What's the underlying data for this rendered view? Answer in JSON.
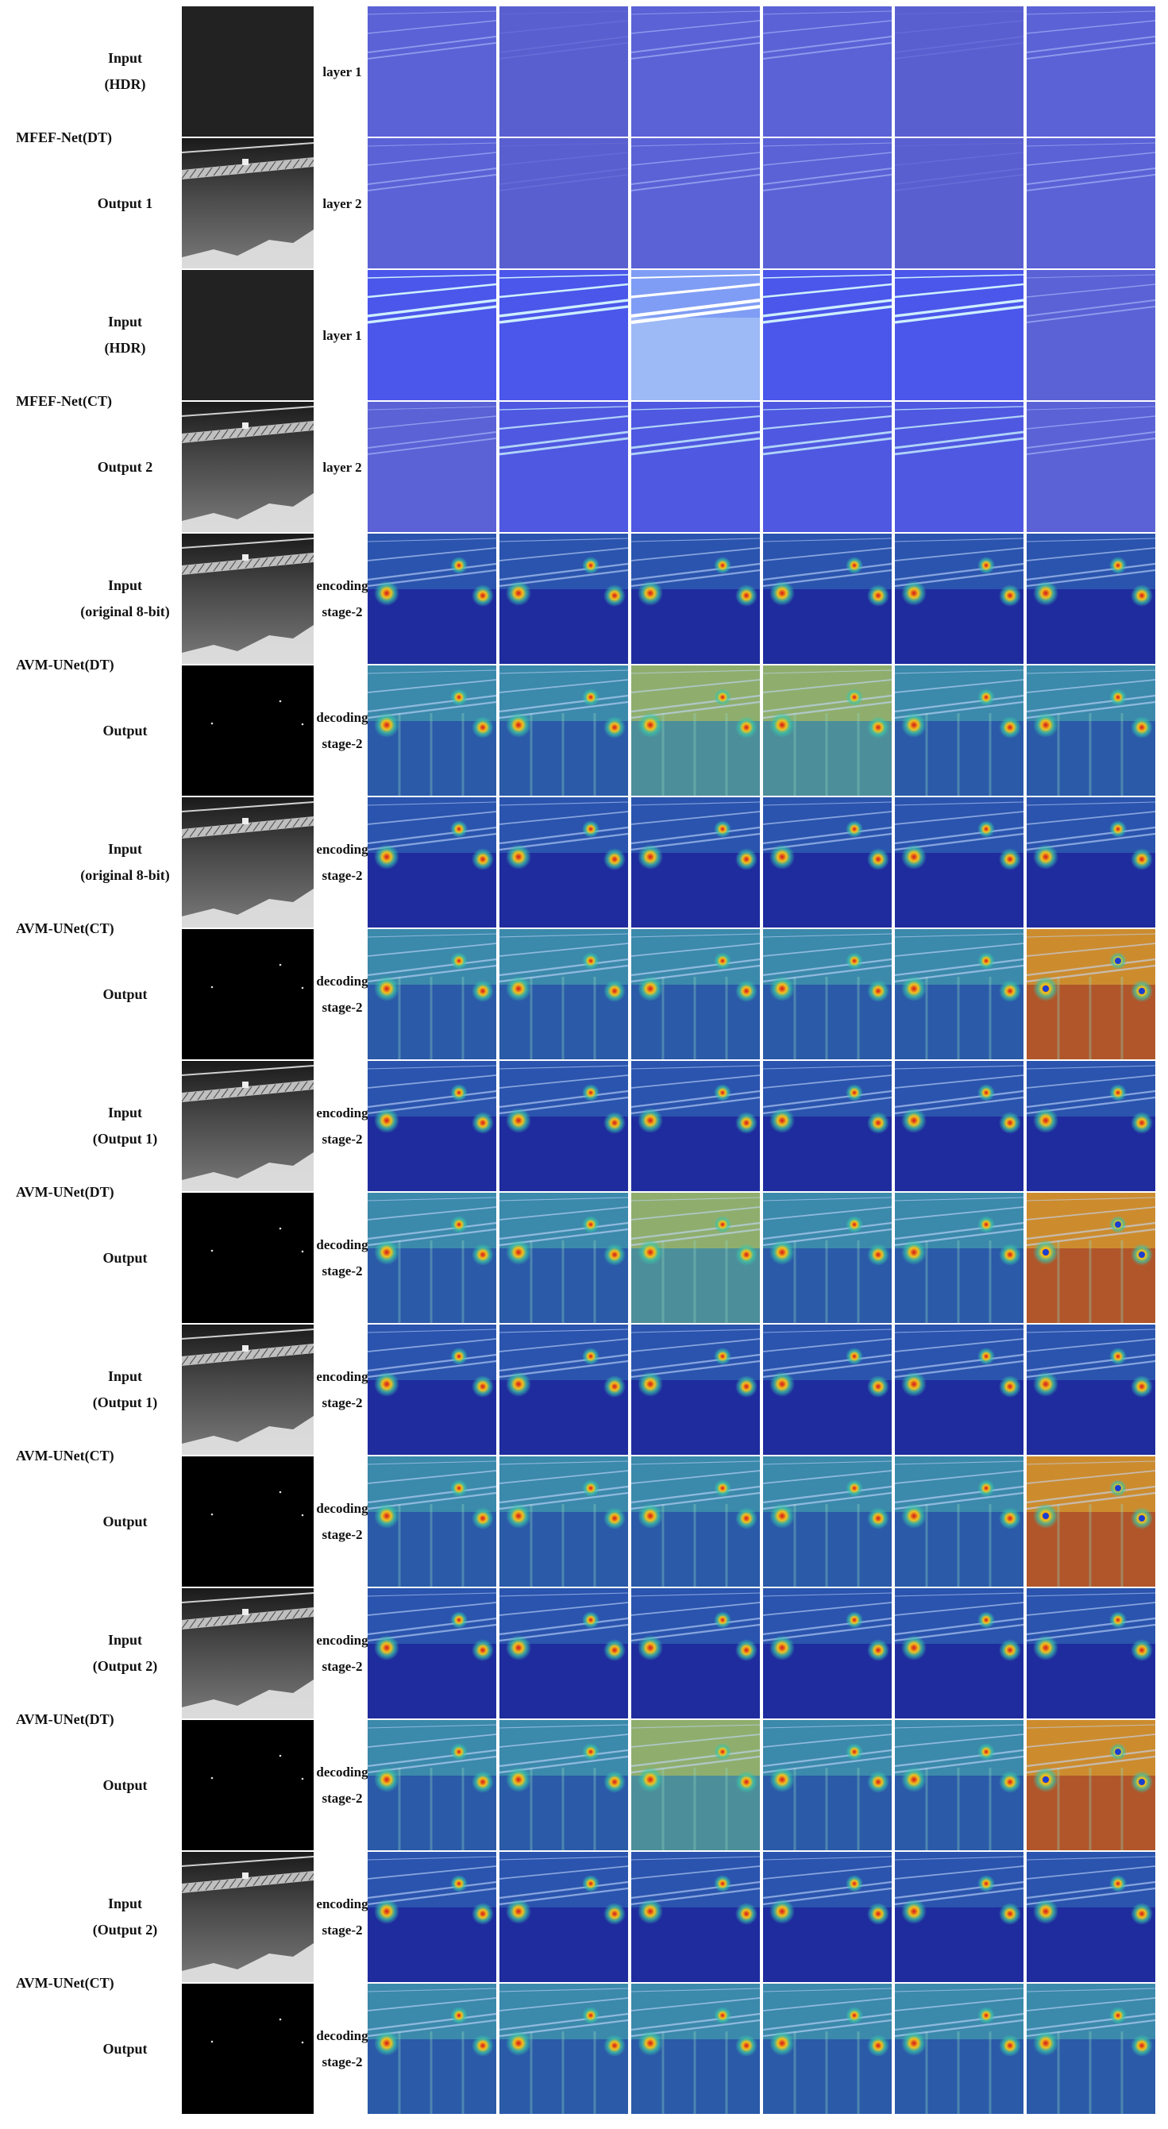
{
  "figure": {
    "groups": [
      {
        "model": "MFEF-Net(DT)",
        "rows": [
          {
            "label_lines": [
              "Input",
              "(HDR)"
            ],
            "thumb": "dark-gray",
            "layer_lines": [
              "layer 1"
            ],
            "maps": [
              "fmap-faint",
              "fmap-flat",
              "fmap-faint",
              "fmap-faint",
              "fmap-flat",
              "fmap-faint"
            ]
          },
          {
            "label_lines": [
              "Output 1"
            ],
            "thumb": "gray-scene",
            "layer_lines": [
              "layer 2"
            ],
            "maps": [
              "fmap-faint",
              "fmap-flat",
              "fmap-faint",
              "fmap-faint",
              "fmap-flat",
              "fmap-faint"
            ]
          }
        ]
      },
      {
        "model": "MFEF-Net(CT)",
        "rows": [
          {
            "label_lines": [
              "Input",
              "(HDR)"
            ],
            "thumb": "dark-gray",
            "layer_lines": [
              "layer 1"
            ],
            "maps": [
              "fmap-bright",
              "fmap-bright",
              "fmap-white",
              "fmap-bright",
              "fmap-bright",
              "fmap-faint"
            ]
          },
          {
            "label_lines": [
              "Output 2"
            ],
            "thumb": "gray-scene",
            "layer_lines": [
              "layer 2"
            ],
            "maps": [
              "fmap-faint",
              "fmap-mid",
              "fmap-mid",
              "fmap-mid",
              "fmap-mid",
              "fmap-faint"
            ]
          }
        ]
      },
      {
        "model": "AVM-UNet(DT)",
        "rows": [
          {
            "label_lines": [
              "Input",
              "(original 8-bit)"
            ],
            "thumb": "gray-scene",
            "layer_lines": [
              "encoding",
              "stage-2"
            ],
            "maps": [
              "heat-enc",
              "heat-enc",
              "heat-enc",
              "heat-enc",
              "heat-enc",
              "heat-enc"
            ]
          },
          {
            "label_lines": [
              "Output"
            ],
            "thumb": "black-dots",
            "layer_lines": [
              "decoding",
              "stage-2"
            ],
            "maps": [
              "heat-dec",
              "heat-dec",
              "heat-dec-warm",
              "heat-dec-warm",
              "heat-dec",
              "heat-dec"
            ]
          }
        ]
      },
      {
        "model": "AVM-UNet(CT)",
        "rows": [
          {
            "label_lines": [
              "Input",
              "(original 8-bit)"
            ],
            "thumb": "gray-scene",
            "layer_lines": [
              "encoding",
              "stage-2"
            ],
            "maps": [
              "heat-enc",
              "heat-enc",
              "heat-enc",
              "heat-enc",
              "heat-enc",
              "heat-enc"
            ]
          },
          {
            "label_lines": [
              "Output"
            ],
            "thumb": "black-dots",
            "layer_lines": [
              "decoding",
              "stage-2"
            ],
            "maps": [
              "heat-dec",
              "heat-dec",
              "heat-dec",
              "heat-dec",
              "heat-dec",
              "heat-dec-hot"
            ]
          }
        ]
      },
      {
        "model": "AVM-UNet(DT)",
        "rows": [
          {
            "label_lines": [
              "Input",
              "(Output 1)"
            ],
            "thumb": "gray-scene",
            "layer_lines": [
              "encoding",
              "stage-2"
            ],
            "maps": [
              "heat-enc",
              "heat-enc",
              "heat-enc",
              "heat-enc",
              "heat-enc",
              "heat-enc"
            ]
          },
          {
            "label_lines": [
              "Output"
            ],
            "thumb": "black-dots",
            "layer_lines": [
              "decoding",
              "stage-2"
            ],
            "maps": [
              "heat-dec",
              "heat-dec",
              "heat-dec-warm",
              "heat-dec",
              "heat-dec",
              "heat-dec-hot"
            ]
          }
        ]
      },
      {
        "model": "AVM-UNet(CT)",
        "rows": [
          {
            "label_lines": [
              "Input",
              "(Output 1)"
            ],
            "thumb": "gray-scene",
            "layer_lines": [
              "encoding",
              "stage-2"
            ],
            "maps": [
              "heat-enc",
              "heat-enc",
              "heat-enc",
              "heat-enc",
              "heat-enc",
              "heat-enc"
            ]
          },
          {
            "label_lines": [
              "Output"
            ],
            "thumb": "black-dots",
            "layer_lines": [
              "decoding",
              "stage-2"
            ],
            "maps": [
              "heat-dec",
              "heat-dec",
              "heat-dec",
              "heat-dec",
              "heat-dec",
              "heat-dec-hot"
            ]
          }
        ]
      },
      {
        "model": "AVM-UNet(DT)",
        "rows": [
          {
            "label_lines": [
              "Input",
              "(Output 2)"
            ],
            "thumb": "gray-scene",
            "layer_lines": [
              "encoding",
              "stage-2"
            ],
            "maps": [
              "heat-enc",
              "heat-enc",
              "heat-enc",
              "heat-enc",
              "heat-enc",
              "heat-enc"
            ]
          },
          {
            "label_lines": [
              "Output"
            ],
            "thumb": "black-dots",
            "layer_lines": [
              "decoding",
              "stage-2"
            ],
            "maps": [
              "heat-dec",
              "heat-dec",
              "heat-dec-warm",
              "heat-dec",
              "heat-dec",
              "heat-dec-hot"
            ]
          }
        ]
      },
      {
        "model": "AVM-UNet(CT)",
        "rows": [
          {
            "label_lines": [
              "Input",
              "(Output 2)"
            ],
            "thumb": "gray-scene",
            "layer_lines": [
              "encoding",
              "stage-2"
            ],
            "maps": [
              "heat-enc",
              "heat-enc",
              "heat-enc",
              "heat-enc",
              "heat-enc",
              "heat-enc"
            ]
          },
          {
            "label_lines": [
              "Output"
            ],
            "thumb": "black-dots",
            "layer_lines": [
              "decoding",
              "stage-2"
            ],
            "maps": [
              "heat-dec",
              "heat-dec",
              "heat-dec",
              "heat-dec",
              "heat-dec",
              "heat-dec"
            ]
          }
        ]
      }
    ]
  }
}
